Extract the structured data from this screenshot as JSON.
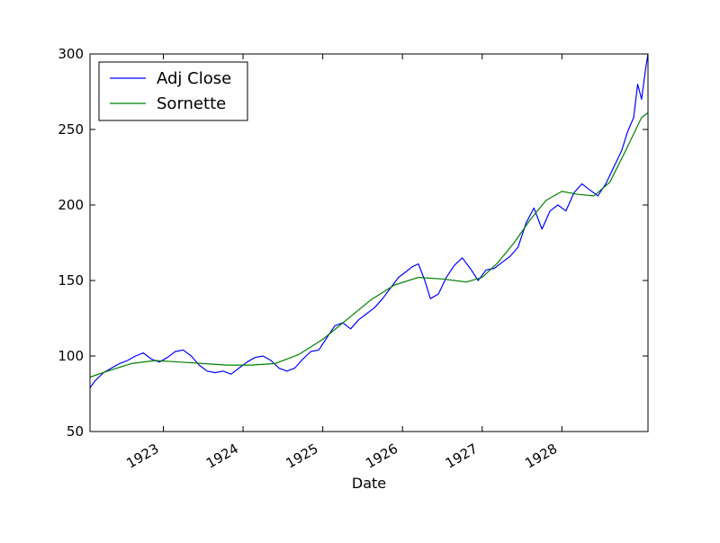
{
  "chart_data": {
    "type": "line",
    "title": "",
    "xlabel": "Date",
    "ylabel": "",
    "xlim": [
      1922.08,
      1929.08
    ],
    "ylim": [
      50,
      300
    ],
    "grid": false,
    "legend_position": "top-left",
    "x_ticks": [
      1923,
      1924,
      1925,
      1926,
      1927,
      1928
    ],
    "x_tick_labels": [
      "1923",
      "1924",
      "1925",
      "1926",
      "1927",
      "1928"
    ],
    "y_ticks": [
      50,
      100,
      150,
      200,
      250,
      300
    ],
    "y_tick_labels": [
      "50",
      "100",
      "150",
      "200",
      "250",
      "300"
    ],
    "series": [
      {
        "name": "Adj Close",
        "color": "#0000ff",
        "x": [
          1922.08,
          1922.15,
          1922.25,
          1922.35,
          1922.45,
          1922.55,
          1922.65,
          1922.75,
          1922.85,
          1922.95,
          1923.05,
          1923.15,
          1923.25,
          1923.35,
          1923.45,
          1923.55,
          1923.65,
          1923.75,
          1923.85,
          1923.95,
          1924.05,
          1924.15,
          1924.25,
          1924.35,
          1924.45,
          1924.55,
          1924.65,
          1924.75,
          1924.85,
          1924.95,
          1925.05,
          1925.15,
          1925.25,
          1925.35,
          1925.45,
          1925.55,
          1925.65,
          1925.75,
          1925.85,
          1925.95,
          1926.05,
          1926.12,
          1926.2,
          1926.28,
          1926.35,
          1926.45,
          1926.55,
          1926.65,
          1926.75,
          1926.85,
          1926.95,
          1927.05,
          1927.15,
          1927.25,
          1927.35,
          1927.45,
          1927.55,
          1927.65,
          1927.75,
          1927.85,
          1927.95,
          1928.05,
          1928.15,
          1928.25,
          1928.35,
          1928.45,
          1928.55,
          1928.65,
          1928.75,
          1928.82,
          1928.9,
          1928.95,
          1929.0,
          1929.05,
          1929.08
        ],
        "y": [
          79,
          84,
          89,
          92,
          95,
          97,
          100,
          102,
          98,
          96,
          99,
          103,
          104,
          100,
          94,
          90,
          89,
          90,
          88,
          92,
          96,
          99,
          100,
          97,
          92,
          90,
          92,
          98,
          103,
          104,
          112,
          120,
          122,
          118,
          124,
          128,
          132,
          138,
          145,
          152,
          156,
          159,
          161,
          150,
          138,
          141,
          152,
          160,
          165,
          158,
          150,
          157,
          158,
          162,
          166,
          172,
          188,
          198,
          184,
          196,
          200,
          196,
          208,
          214,
          210,
          206,
          214,
          225,
          236,
          248,
          258,
          280,
          270,
          290,
          300
        ]
      },
      {
        "name": "Sornette",
        "color": "#008000",
        "x": [
          1922.08,
          1922.3,
          1922.6,
          1922.9,
          1923.2,
          1923.5,
          1923.8,
          1924.1,
          1924.4,
          1924.7,
          1925.0,
          1925.3,
          1925.6,
          1925.9,
          1926.2,
          1926.5,
          1926.8,
          1927.0,
          1927.2,
          1927.4,
          1927.6,
          1927.8,
          1928.0,
          1928.2,
          1928.4,
          1928.6,
          1928.8,
          1929.0,
          1929.08
        ],
        "y": [
          86,
          90,
          95,
          97,
          96,
          95,
          94,
          94,
          95,
          101,
          111,
          124,
          137,
          147,
          152,
          151,
          149,
          152,
          162,
          175,
          190,
          203,
          209,
          207,
          206,
          215,
          236,
          258,
          261
        ]
      }
    ]
  }
}
